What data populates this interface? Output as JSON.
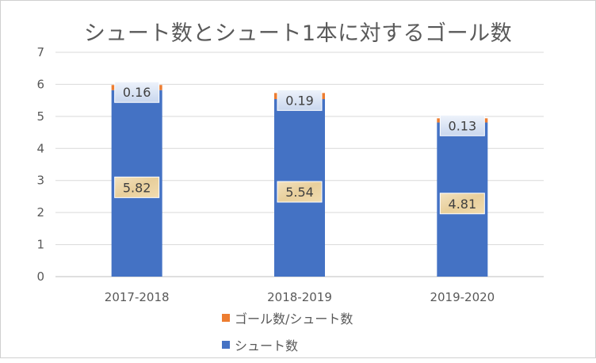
{
  "chart_data": {
    "type": "bar",
    "stacked": true,
    "title": "シュート数とシュート1本に対するゴール数",
    "categories": [
      "2017-2018",
      "2018-2019",
      "2019-2020"
    ],
    "series": [
      {
        "name": "シュート数",
        "values": [
          5.82,
          5.54,
          4.81
        ],
        "color": "#4472C4"
      },
      {
        "name": "ゴール数/シュート数",
        "values": [
          0.16,
          0.19,
          0.13
        ],
        "color": "#ED7D31"
      }
    ],
    "ylim": [
      0,
      7
    ],
    "yticks": [
      0,
      1,
      2,
      3,
      4,
      5,
      6,
      7
    ],
    "grid": true,
    "legend_position": "bottom",
    "data_labels": true
  }
}
